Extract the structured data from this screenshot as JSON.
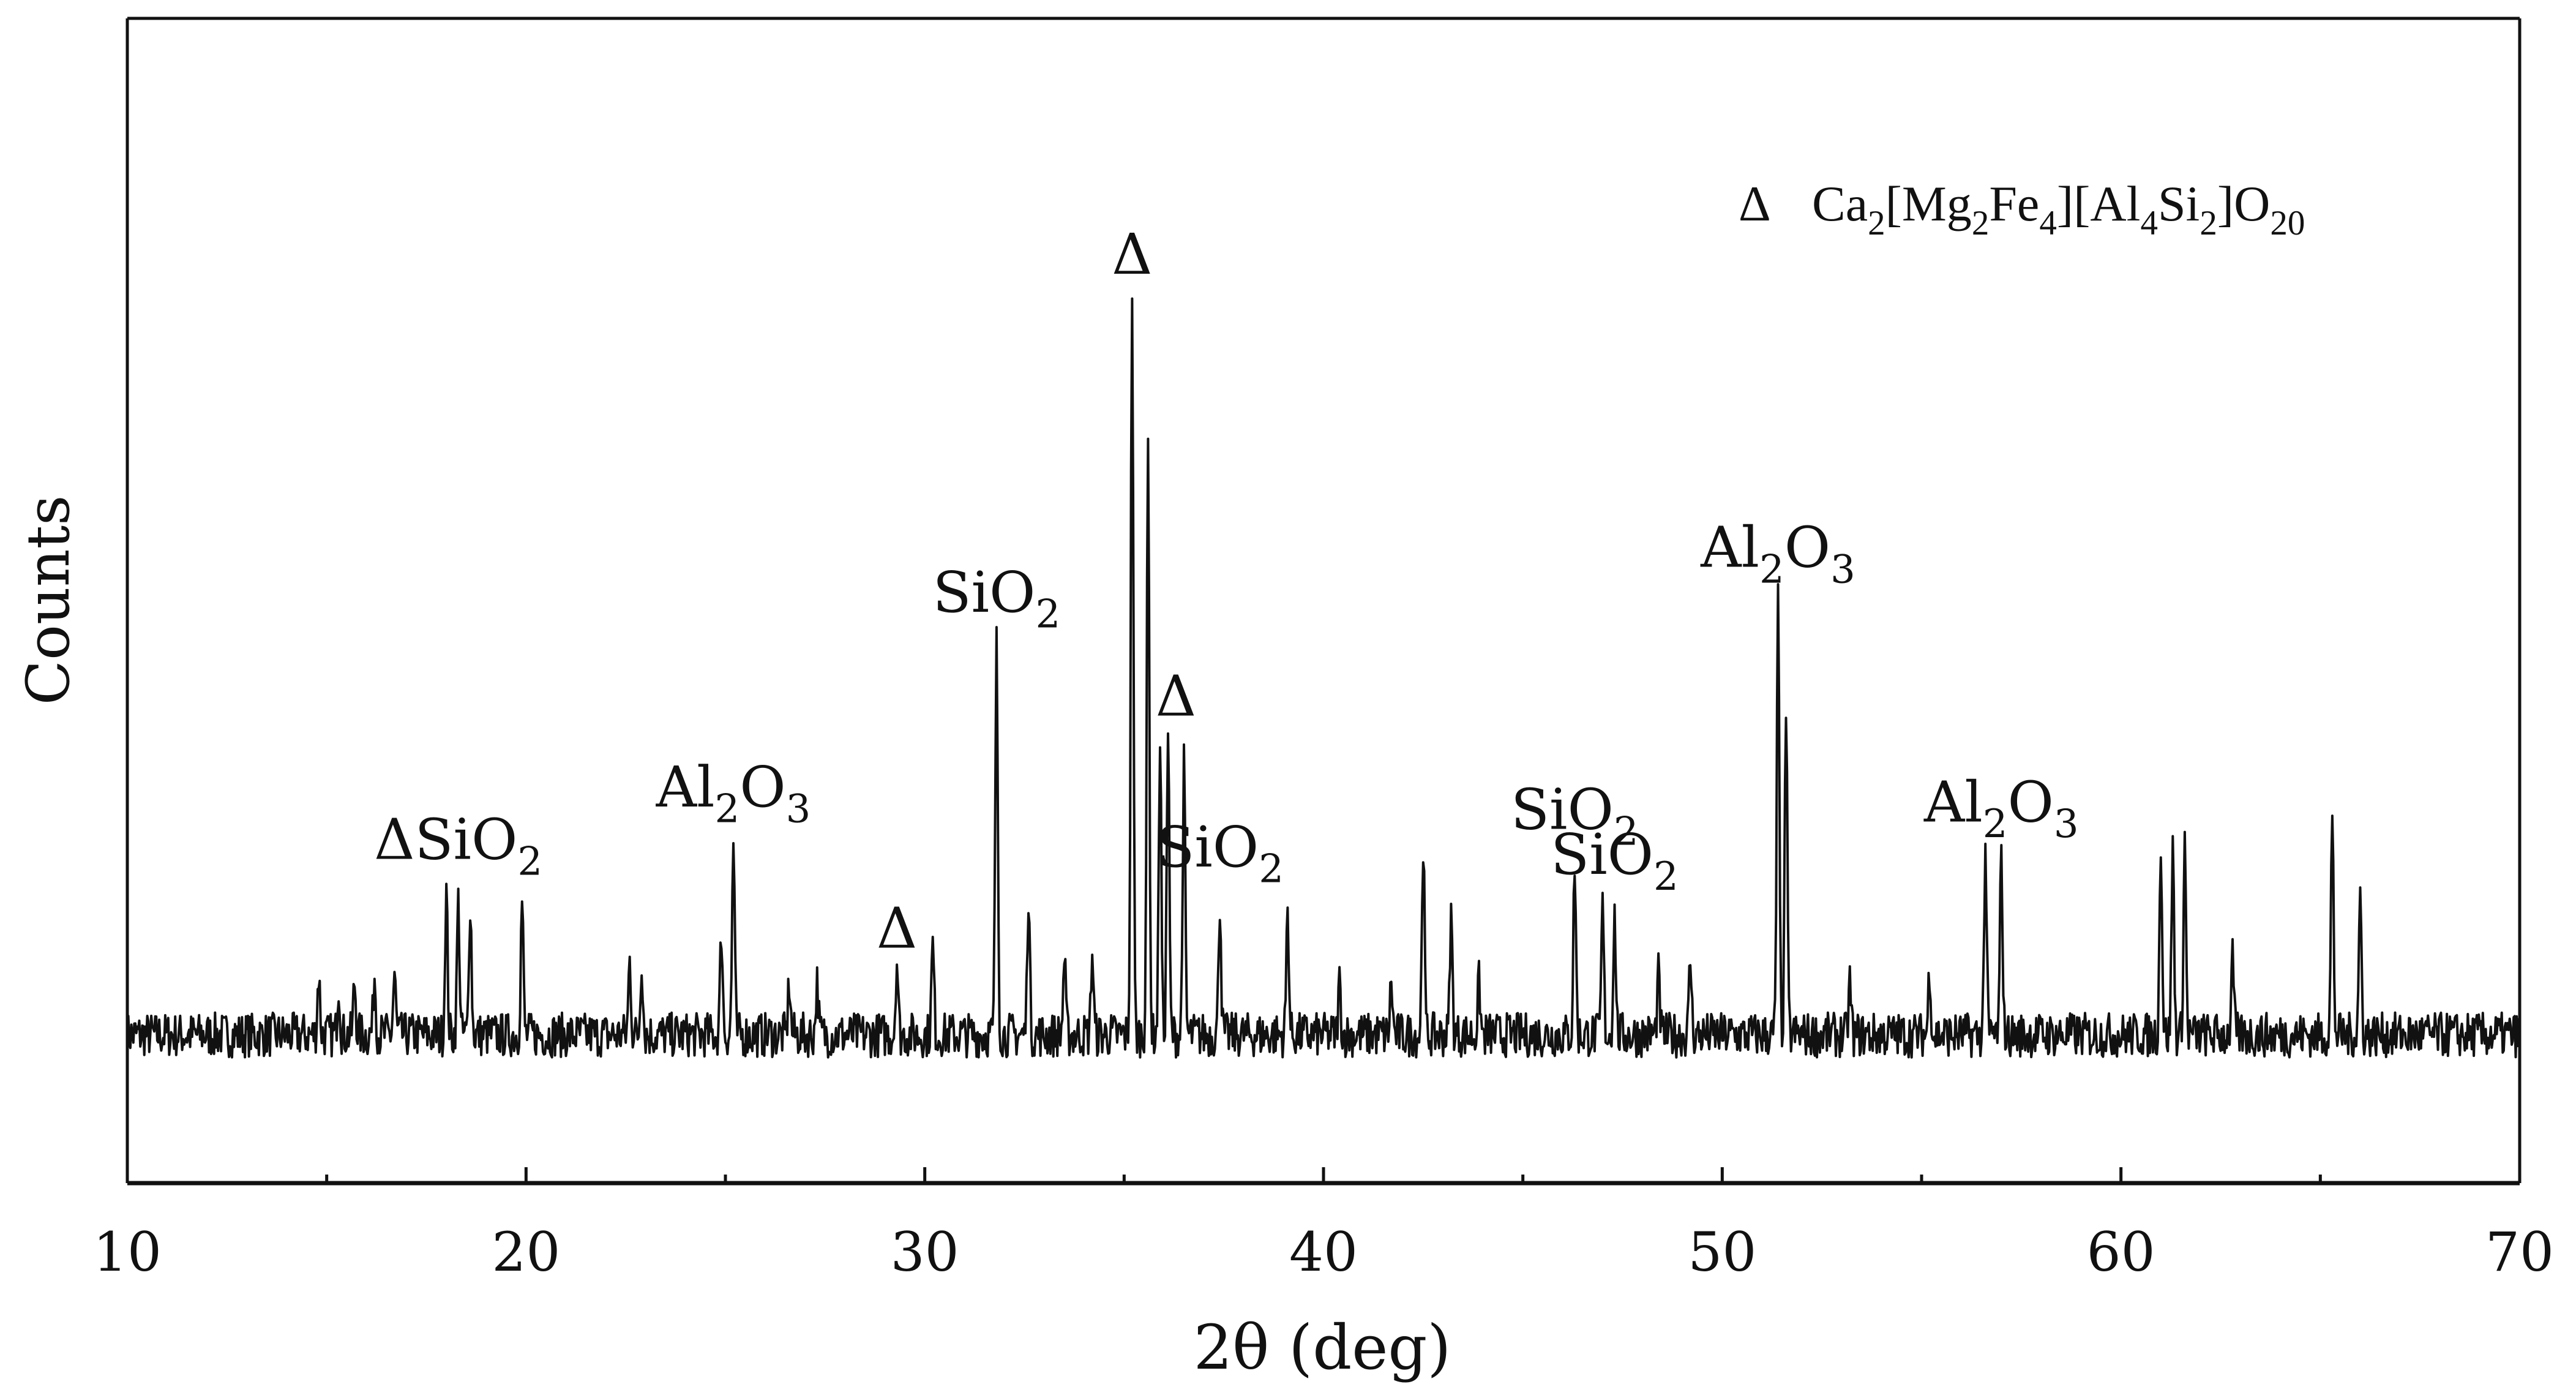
{
  "chart_data": {
    "type": "line",
    "title": "",
    "xlabel": "2θ (deg)",
    "ylabel": "Counts",
    "xlim": [
      10,
      70
    ],
    "xticks": [
      10,
      20,
      30,
      40,
      50,
      60,
      70
    ],
    "yticks_shown": false,
    "grid": false,
    "line_color": "#111111",
    "legend": {
      "placement": "top-right",
      "marker": "Δ",
      "entry": "Ca2[Mg2Fe4][Al4Si2]O20"
    },
    "series": [
      {
        "values_unit": "relative counts",
        "baseline": 12,
        "noise_amplitude": 3,
        "peaks": [
          {
            "x": 14.8,
            "y": 20
          },
          {
            "x": 15.3,
            "y": 19
          },
          {
            "x": 15.7,
            "y": 19
          },
          {
            "x": 16.2,
            "y": 20
          },
          {
            "x": 16.7,
            "y": 20
          },
          {
            "x": 18.0,
            "y": 31
          },
          {
            "x": 18.3,
            "y": 30
          },
          {
            "x": 18.6,
            "y": 30
          },
          {
            "x": 19.9,
            "y": 30
          },
          {
            "x": 22.6,
            "y": 22
          },
          {
            "x": 22.9,
            "y": 22
          },
          {
            "x": 24.9,
            "y": 26
          },
          {
            "x": 25.2,
            "y": 38
          },
          {
            "x": 26.6,
            "y": 19
          },
          {
            "x": 27.3,
            "y": 19
          },
          {
            "x": 29.3,
            "y": 22
          },
          {
            "x": 30.2,
            "y": 24
          },
          {
            "x": 31.8,
            "y": 64
          },
          {
            "x": 32.6,
            "y": 31
          },
          {
            "x": 33.5,
            "y": 22
          },
          {
            "x": 34.2,
            "y": 23
          },
          {
            "x": 35.2,
            "y": 112
          },
          {
            "x": 35.6,
            "y": 91
          },
          {
            "x": 35.9,
            "y": 52
          },
          {
            "x": 36.1,
            "y": 53
          },
          {
            "x": 36.5,
            "y": 48
          },
          {
            "x": 37.4,
            "y": 30
          },
          {
            "x": 39.1,
            "y": 29
          },
          {
            "x": 40.4,
            "y": 19
          },
          {
            "x": 41.7,
            "y": 19
          },
          {
            "x": 42.5,
            "y": 38
          },
          {
            "x": 43.2,
            "y": 28
          },
          {
            "x": 43.9,
            "y": 19
          },
          {
            "x": 46.3,
            "y": 35
          },
          {
            "x": 47.0,
            "y": 29
          },
          {
            "x": 47.3,
            "y": 28
          },
          {
            "x": 48.4,
            "y": 20
          },
          {
            "x": 49.2,
            "y": 22
          },
          {
            "x": 51.4,
            "y": 70
          },
          {
            "x": 51.6,
            "y": 56
          },
          {
            "x": 53.2,
            "y": 19
          },
          {
            "x": 55.2,
            "y": 21
          },
          {
            "x": 56.6,
            "y": 37
          },
          {
            "x": 57.0,
            "y": 36
          },
          {
            "x": 61.0,
            "y": 38
          },
          {
            "x": 61.3,
            "y": 37
          },
          {
            "x": 61.6,
            "y": 38
          },
          {
            "x": 62.8,
            "y": 22
          },
          {
            "x": 65.3,
            "y": 41
          },
          {
            "x": 66.0,
            "y": 31
          }
        ]
      }
    ],
    "annotations": [
      {
        "text": "ΔSiO2",
        "x": 18.3
      },
      {
        "text": "Al2O3",
        "x": 25.2
      },
      {
        "text": "Δ",
        "x": 29.3
      },
      {
        "text": "SiO2",
        "x": 31.8
      },
      {
        "text": "Δ",
        "x": 35.2
      },
      {
        "text": "Δ",
        "x": 36.3
      },
      {
        "text": "SiO2",
        "x": 37.4
      },
      {
        "text": "SiO2",
        "x": 46.3
      },
      {
        "text": "SiO2",
        "x": 47.3
      },
      {
        "text": "Al2O3",
        "x": 51.4
      },
      {
        "text": "Al2O3",
        "x": 57.0
      }
    ]
  }
}
